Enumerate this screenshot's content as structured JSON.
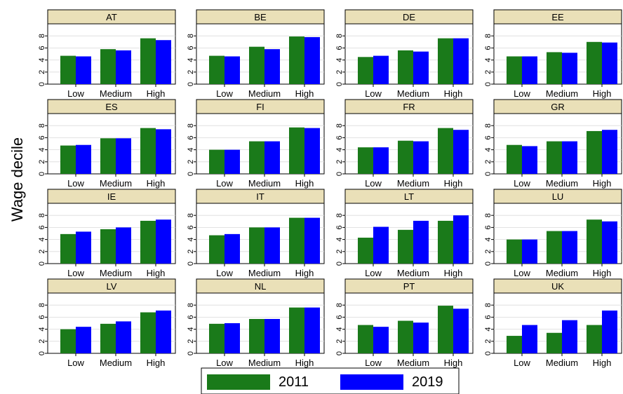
{
  "colors": {
    "2011": "#1a7a1a",
    "2019": "#0000ff",
    "strip": "#eae0b8"
  },
  "legend": {
    "position": "bottom",
    "items": [
      {
        "label": "2011",
        "color": "#1a7a1a"
      },
      {
        "label": "2019",
        "color": "#0000ff"
      }
    ]
  },
  "chart_data": {
    "type": "bar",
    "ylabel": "Wage decile",
    "ylim": [
      0,
      10
    ],
    "yticks": [
      "0",
      "2",
      "4",
      "6",
      "8"
    ],
    "grid": true,
    "categories": [
      "Low",
      "Medium",
      "High"
    ],
    "series_names": [
      "2011",
      "2019"
    ],
    "panels": [
      {
        "name": "AT",
        "2011": [
          4.7,
          5.8,
          7.6
        ],
        "2019": [
          4.6,
          5.6,
          7.3
        ]
      },
      {
        "name": "BE",
        "2011": [
          4.7,
          6.2,
          7.9
        ],
        "2019": [
          4.6,
          5.8,
          7.8
        ]
      },
      {
        "name": "DE",
        "2011": [
          4.5,
          5.6,
          7.6
        ],
        "2019": [
          4.7,
          5.4,
          7.6
        ]
      },
      {
        "name": "EE",
        "2011": [
          4.6,
          5.3,
          7.0
        ],
        "2019": [
          4.6,
          5.2,
          6.9
        ]
      },
      {
        "name": "ES",
        "2011": [
          4.7,
          5.9,
          7.6
        ],
        "2019": [
          4.8,
          5.9,
          7.4
        ]
      },
      {
        "name": "FI",
        "2011": [
          4.0,
          5.4,
          7.7
        ],
        "2019": [
          4.0,
          5.4,
          7.6
        ]
      },
      {
        "name": "FR",
        "2011": [
          4.4,
          5.5,
          7.6
        ],
        "2019": [
          4.4,
          5.4,
          7.3
        ]
      },
      {
        "name": "GR",
        "2011": [
          4.8,
          5.4,
          7.1
        ],
        "2019": [
          4.6,
          5.4,
          7.3
        ]
      },
      {
        "name": "IE",
        "2011": [
          4.9,
          5.7,
          7.1
        ],
        "2019": [
          5.3,
          6.0,
          7.3
        ]
      },
      {
        "name": "IT",
        "2011": [
          4.7,
          6.0,
          7.6
        ],
        "2019": [
          4.9,
          6.0,
          7.6
        ]
      },
      {
        "name": "LT",
        "2011": [
          4.3,
          5.6,
          7.1
        ],
        "2019": [
          6.1,
          7.1,
          8.0
        ]
      },
      {
        "name": "LU",
        "2011": [
          4.0,
          5.4,
          7.3
        ],
        "2019": [
          4.0,
          5.4,
          7.0
        ]
      },
      {
        "name": "LV",
        "2011": [
          4.0,
          4.9,
          6.8
        ],
        "2019": [
          4.4,
          5.3,
          7.1
        ]
      },
      {
        "name": "NL",
        "2011": [
          4.9,
          5.7,
          7.6
        ],
        "2019": [
          5.0,
          5.7,
          7.6
        ]
      },
      {
        "name": "PT",
        "2011": [
          4.7,
          5.4,
          7.9
        ],
        "2019": [
          4.4,
          5.1,
          7.4
        ]
      },
      {
        "name": "UK",
        "2011": [
          2.9,
          3.4,
          4.7
        ],
        "2019": [
          4.7,
          5.5,
          7.1
        ]
      }
    ]
  }
}
